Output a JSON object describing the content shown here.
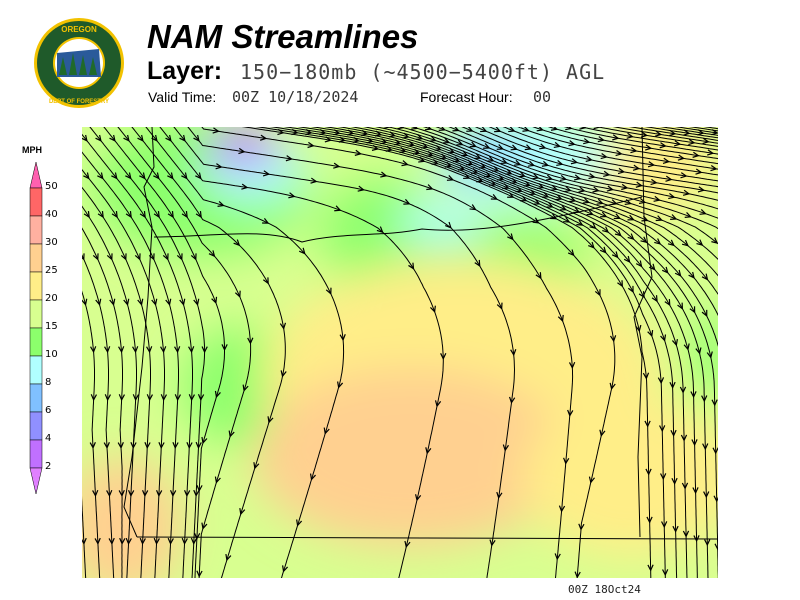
{
  "logo": {
    "text_top": "OREGON",
    "text_ring": "DEPARTMENT OF FORESTRY"
  },
  "header": {
    "title": "NAM Streamlines",
    "layer_label": "Layer:",
    "layer_value": "150−180mb (~4500−5400ft) AGL",
    "valid_label": "Valid Time:",
    "valid_value": "00Z 10/18/2024",
    "forecast_label": "Forecast Hour:",
    "forecast_value": "00"
  },
  "colorbar": {
    "unit": "MPH",
    "levels": [
      "50",
      "40",
      "30",
      "25",
      "20",
      "15",
      "10",
      "8",
      "6",
      "4",
      "2"
    ],
    "colors": [
      "#ff6666",
      "#ffb0a0",
      "#ffd090",
      "#ffee88",
      "#d8ff90",
      "#8cff6c",
      "#b0ffff",
      "#80c0ff",
      "#9090ff",
      "#c070ff"
    ],
    "over_color": "#ff60b0",
    "under_color": "#e080ff"
  },
  "map": {
    "variable": "wind speed streamlines",
    "stamp": "00Z 18Oct24"
  }
}
